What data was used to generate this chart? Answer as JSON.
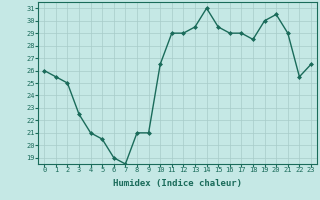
{
  "values": [
    26,
    25.5,
    25,
    22.5,
    21,
    20.5,
    19,
    18.5,
    21,
    21,
    26.5,
    29,
    29,
    29.5,
    31,
    29.5,
    29,
    29,
    28.5,
    30,
    30.5,
    29,
    25.5,
    26.5
  ],
  "xlabel": "Humidex (Indice chaleur)",
  "ylim": [
    18.5,
    31.5
  ],
  "yticks": [
    19,
    20,
    21,
    22,
    23,
    24,
    25,
    26,
    27,
    28,
    29,
    30,
    31
  ],
  "xticks": [
    0,
    1,
    2,
    3,
    4,
    5,
    6,
    7,
    8,
    9,
    10,
    11,
    12,
    13,
    14,
    15,
    16,
    17,
    18,
    19,
    20,
    21,
    22,
    23
  ],
  "line_color": "#1a6b5a",
  "bg_color": "#c5e8e5",
  "grid_color": "#a8ccc9",
  "marker": "D",
  "marker_size": 2.0,
  "linewidth": 1.0,
  "tick_fontsize": 5.0,
  "xlabel_fontsize": 6.5
}
